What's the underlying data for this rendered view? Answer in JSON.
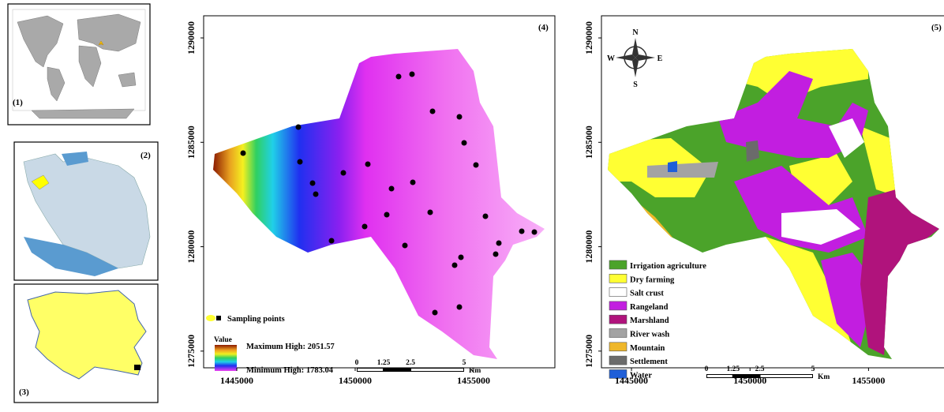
{
  "insets": {
    "world": {
      "label": "(1)"
    },
    "country": {
      "label": "(2)"
    },
    "province": {
      "label": "(3)"
    }
  },
  "elevation_map": {
    "label": "(4)",
    "xlim": [
      1443600,
      1458433
    ],
    "ylim": [
      1274200,
      1291060
    ],
    "xticks": [
      1445000,
      1450000,
      1455000
    ],
    "yticks": [
      1275000,
      1280000,
      1285000,
      1290000
    ],
    "legend": {
      "sampling_points": "Sampling points",
      "value_title": "Value",
      "max": "Maximum High: 2051.57",
      "min": "Minimum High: 1783.04"
    },
    "scale_bar": {
      "labels": [
        0,
        1.25,
        2.5,
        5
      ],
      "unit": "Km"
    }
  },
  "landuse_map": {
    "label": "(5)",
    "xlim": [
      1443733,
      1458200
    ],
    "ylim": [
      1274200,
      1291060
    ],
    "xticks": [
      1445000,
      1450000,
      1455000
    ],
    "yticks": [
      1275000,
      1280000,
      1285000,
      1290000
    ],
    "compass": {
      "n": "N",
      "s": "S",
      "w": "W",
      "e": "E"
    },
    "legend": [
      {
        "name": "Irrigation agriculture",
        "color": "#4ba32a"
      },
      {
        "name": "Dry farming",
        "color": "#ffff33"
      },
      {
        "name": "Salt crust",
        "color": "#ffffff"
      },
      {
        "name": "Rangeland",
        "color": "#c21ee0"
      },
      {
        "name": "Marshland",
        "color": "#b0137c"
      },
      {
        "name": "River wash",
        "color": "#a3a3a3"
      },
      {
        "name": "Mountain",
        "color": "#efb72a"
      },
      {
        "name": "Settlement",
        "color": "#6b6b6b"
      },
      {
        "name": "Water",
        "color": "#1f5fd8"
      }
    ],
    "scale_bar": {
      "labels": [
        0,
        1.25,
        2.5,
        5
      ],
      "unit": "Km"
    }
  }
}
